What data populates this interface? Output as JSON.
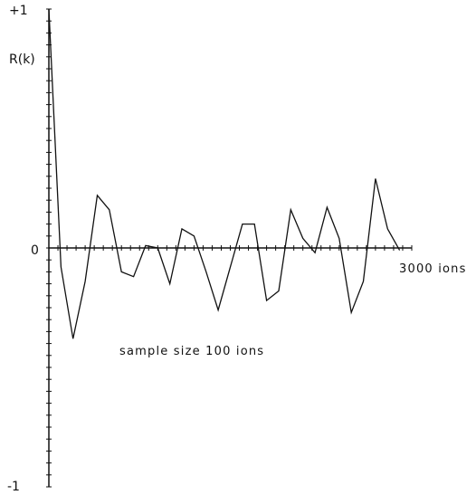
{
  "chart_data": {
    "type": "line",
    "title": "",
    "ylabel": "R(k)",
    "xlabel": "3000 ions",
    "annotation": "sample size 100 ions",
    "y_tick_labels": {
      "top": "+1",
      "zero": "0",
      "bottom": "-1"
    },
    "xlim": [
      0,
      3000
    ],
    "ylim": [
      -1,
      1
    ],
    "grid": false,
    "line_color": "#111111",
    "series": [
      {
        "x": [
          0,
          100,
          200,
          300,
          400,
          500,
          600,
          700,
          800,
          900,
          1000,
          1100,
          1200,
          1300,
          1400,
          1500,
          1600,
          1700,
          1800,
          1900,
          2000,
          2100,
          2200,
          2300,
          2400,
          2500,
          2600,
          2700,
          2800,
          2900
        ],
        "y": [
          1.0,
          -0.08,
          -0.38,
          -0.14,
          0.22,
          0.16,
          -0.1,
          -0.12,
          0.01,
          0.0,
          -0.15,
          0.08,
          0.05,
          -0.1,
          -0.26,
          -0.08,
          0.1,
          0.1,
          -0.22,
          -0.18,
          0.16,
          0.04,
          -0.02,
          0.17,
          0.04,
          -0.27,
          -0.14,
          0.29,
          0.08,
          -0.01
        ]
      }
    ]
  }
}
